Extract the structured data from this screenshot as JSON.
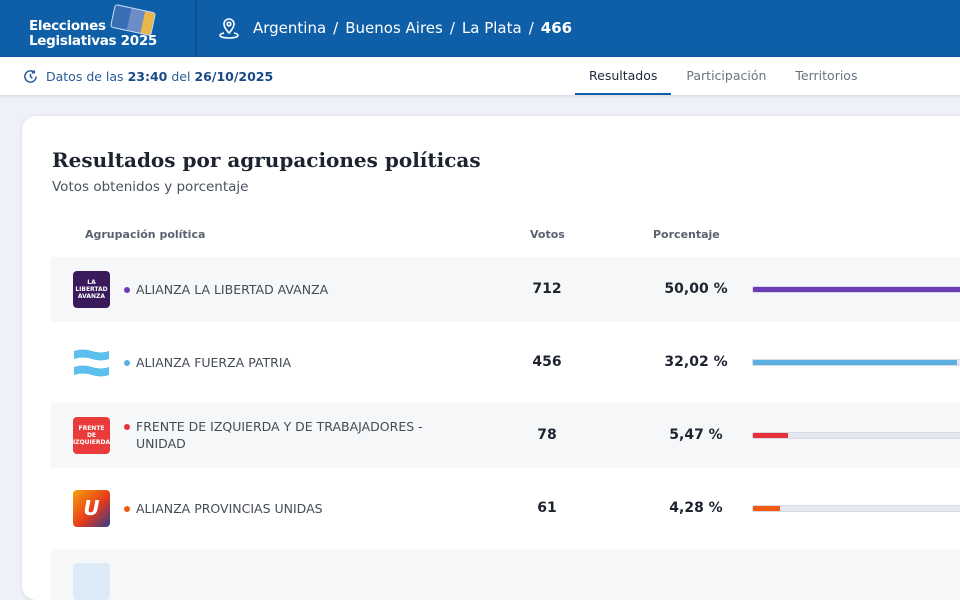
{
  "header": {
    "brand_line1": "Elecciones",
    "brand_line2": "Legislativas 2025",
    "breadcrumb": [
      "Argentina",
      "Buenos Aires",
      "La Plata"
    ],
    "breadcrumb_current": "466",
    "sep": "/"
  },
  "subheader": {
    "prefix": "Datos de las",
    "time": "23:40",
    "mid": "del",
    "date": "26/10/2025",
    "tabs": [
      "Resultados",
      "Participación",
      "Territorios"
    ],
    "active_tab": "Resultados"
  },
  "card": {
    "title": "Resultados por agrupaciones políticas",
    "subtitle": "Votos obtenidos y porcentaje",
    "columns": [
      "Agrupación política",
      "Votos",
      "Porcentaje"
    ]
  },
  "rows": [
    {
      "name": "ALIANZA LA LIBERTAD AVANZA",
      "votes": "712",
      "pct": "50,00 %",
      "percent": 50.0,
      "color": "#6c3bb5",
      "logo_text": "LA LIBERTAD AVANZA"
    },
    {
      "name": "ALIANZA FUERZA PATRIA",
      "votes": "456",
      "pct": "32,02 %",
      "percent": 32.02,
      "color": "#5aaee0",
      "logo_text": ""
    },
    {
      "name": "FRENTE DE IZQUIERDA Y DE TRABAJADORES - UNIDAD",
      "votes": "78",
      "pct": "5,47 %",
      "percent": 5.47,
      "color": "#e8303a",
      "logo_text": "FRENTE DE IZQUIERDA"
    },
    {
      "name": "ALIANZA PROVINCIAS UNIDAS",
      "votes": "61",
      "pct": "4,28 %",
      "percent": 4.28,
      "color": "#f25a12",
      "logo_text": "U"
    }
  ],
  "max_percent": 50
}
